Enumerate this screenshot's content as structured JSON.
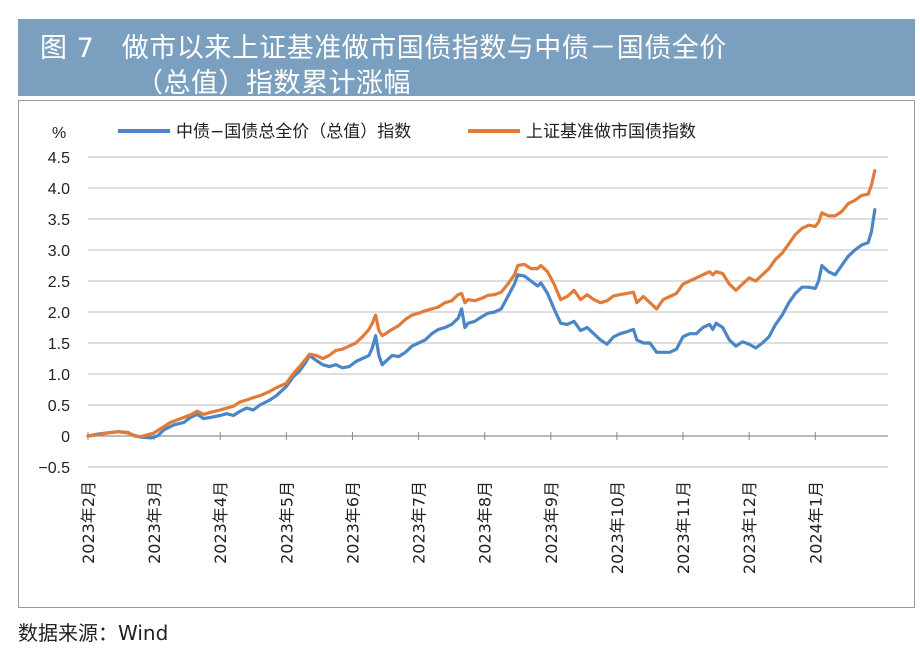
{
  "title": {
    "line1": "图 7　做市以来上证基准做市国债指数与中债－国债全价",
    "line2": "（总值）指数累计涨幅"
  },
  "source": "数据来源：Wind",
  "colors": {
    "series1": "#4a86c5",
    "series2": "#e07b39",
    "title_bg": "#7b9fbe",
    "grid": "#d4d4d4"
  },
  "chart_data": {
    "type": "line",
    "ylabel": "%",
    "ylim": [
      -0.5,
      4.5
    ],
    "yticks": [
      "4.5",
      "4.0",
      "3.5",
      "3.0",
      "2.5",
      "2.0",
      "1.5",
      "1.0",
      "0.5",
      "0",
      "−0.5"
    ],
    "categories": [
      "2023年2月",
      "2023年3月",
      "2023年4月",
      "2023年5月",
      "2023年6月",
      "2023年7月",
      "2023年8月",
      "2023年9月",
      "2023年10月",
      "2023年11月",
      "2023年12月",
      "2024年1月"
    ],
    "category_index": [
      0,
      20,
      40,
      60,
      80,
      100,
      120,
      140,
      160,
      180,
      200,
      220
    ],
    "x_max": 242,
    "legend_position": "top",
    "series": [
      {
        "name": "中债−国债总全价（总值）指数",
        "points": [
          [
            0,
            0
          ],
          [
            3,
            0.03
          ],
          [
            6,
            0.05
          ],
          [
            9,
            0.07
          ],
          [
            12,
            0.05
          ],
          [
            14,
            0.01
          ],
          [
            16,
            -0.02
          ],
          [
            19,
            -0.03
          ],
          [
            21,
            0.0
          ],
          [
            23,
            0.1
          ],
          [
            26,
            0.18
          ],
          [
            29,
            0.22
          ],
          [
            31,
            0.3
          ],
          [
            33,
            0.35
          ],
          [
            35,
            0.28
          ],
          [
            37,
            0.3
          ],
          [
            40,
            0.33
          ],
          [
            42,
            0.36
          ],
          [
            44,
            0.33
          ],
          [
            46,
            0.4
          ],
          [
            48,
            0.45
          ],
          [
            50,
            0.42
          ],
          [
            52,
            0.5
          ],
          [
            55,
            0.58
          ],
          [
            57,
            0.65
          ],
          [
            60,
            0.8
          ],
          [
            62,
            0.95
          ],
          [
            64,
            1.05
          ],
          [
            66,
            1.2
          ],
          [
            67,
            1.3
          ],
          [
            69,
            1.22
          ],
          [
            71,
            1.15
          ],
          [
            73,
            1.12
          ],
          [
            75,
            1.15
          ],
          [
            77,
            1.1
          ],
          [
            79,
            1.12
          ],
          [
            81,
            1.2
          ],
          [
            83,
            1.25
          ],
          [
            85,
            1.3
          ],
          [
            86,
            1.42
          ],
          [
            87,
            1.62
          ],
          [
            88,
            1.3
          ],
          [
            89,
            1.15
          ],
          [
            90,
            1.2
          ],
          [
            92,
            1.3
          ],
          [
            94,
            1.28
          ],
          [
            96,
            1.35
          ],
          [
            98,
            1.45
          ],
          [
            100,
            1.5
          ],
          [
            102,
            1.55
          ],
          [
            104,
            1.65
          ],
          [
            106,
            1.72
          ],
          [
            108,
            1.75
          ],
          [
            110,
            1.8
          ],
          [
            112,
            1.9
          ],
          [
            113,
            2.05
          ],
          [
            114,
            1.75
          ],
          [
            115,
            1.82
          ],
          [
            117,
            1.85
          ],
          [
            119,
            1.92
          ],
          [
            121,
            1.98
          ],
          [
            123,
            2.0
          ],
          [
            125,
            2.05
          ],
          [
            127,
            2.25
          ],
          [
            129,
            2.45
          ],
          [
            130,
            2.6
          ],
          [
            132,
            2.58
          ],
          [
            134,
            2.5
          ],
          [
            136,
            2.42
          ],
          [
            137,
            2.47
          ],
          [
            139,
            2.3
          ],
          [
            141,
            2.05
          ],
          [
            143,
            1.82
          ],
          [
            145,
            1.8
          ],
          [
            147,
            1.85
          ],
          [
            149,
            1.7
          ],
          [
            151,
            1.75
          ],
          [
            153,
            1.65
          ],
          [
            155,
            1.55
          ],
          [
            157,
            1.48
          ],
          [
            159,
            1.6
          ],
          [
            161,
            1.65
          ],
          [
            163,
            1.68
          ],
          [
            165,
            1.72
          ],
          [
            166,
            1.55
          ],
          [
            168,
            1.5
          ],
          [
            170,
            1.5
          ],
          [
            172,
            1.35
          ],
          [
            174,
            1.35
          ],
          [
            176,
            1.35
          ],
          [
            178,
            1.4
          ],
          [
            180,
            1.6
          ],
          [
            182,
            1.65
          ],
          [
            184,
            1.65
          ],
          [
            186,
            1.75
          ],
          [
            188,
            1.8
          ],
          [
            189,
            1.72
          ],
          [
            190,
            1.82
          ],
          [
            192,
            1.75
          ],
          [
            194,
            1.55
          ],
          [
            196,
            1.45
          ],
          [
            198,
            1.52
          ],
          [
            200,
            1.48
          ],
          [
            202,
            1.42
          ],
          [
            204,
            1.5
          ],
          [
            206,
            1.6
          ],
          [
            208,
            1.8
          ],
          [
            210,
            1.95
          ],
          [
            212,
            2.15
          ],
          [
            214,
            2.3
          ],
          [
            216,
            2.4
          ],
          [
            218,
            2.4
          ],
          [
            220,
            2.38
          ],
          [
            221,
            2.5
          ],
          [
            222,
            2.75
          ],
          [
            224,
            2.65
          ],
          [
            226,
            2.6
          ],
          [
            228,
            2.75
          ],
          [
            230,
            2.9
          ],
          [
            232,
            3.0
          ],
          [
            234,
            3.08
          ],
          [
            236,
            3.12
          ],
          [
            237,
            3.3
          ],
          [
            238,
            3.65
          ]
        ]
      },
      {
        "name": "上证基准做市国债指数",
        "points": [
          [
            0,
            0
          ],
          [
            3,
            0.02
          ],
          [
            6,
            0.05
          ],
          [
            9,
            0.07
          ],
          [
            12,
            0.06
          ],
          [
            14,
            0.0
          ],
          [
            16,
            -0.01
          ],
          [
            18,
            0.02
          ],
          [
            20,
            0.05
          ],
          [
            22,
            0.12
          ],
          [
            25,
            0.22
          ],
          [
            28,
            0.28
          ],
          [
            31,
            0.34
          ],
          [
            33,
            0.4
          ],
          [
            35,
            0.35
          ],
          [
            37,
            0.38
          ],
          [
            40,
            0.42
          ],
          [
            42,
            0.45
          ],
          [
            44,
            0.48
          ],
          [
            46,
            0.55
          ],
          [
            48,
            0.58
          ],
          [
            50,
            0.62
          ],
          [
            52,
            0.65
          ],
          [
            55,
            0.72
          ],
          [
            57,
            0.78
          ],
          [
            60,
            0.85
          ],
          [
            62,
            1.0
          ],
          [
            64,
            1.12
          ],
          [
            66,
            1.25
          ],
          [
            67,
            1.32
          ],
          [
            69,
            1.3
          ],
          [
            71,
            1.25
          ],
          [
            73,
            1.3
          ],
          [
            75,
            1.38
          ],
          [
            77,
            1.4
          ],
          [
            79,
            1.45
          ],
          [
            81,
            1.5
          ],
          [
            83,
            1.6
          ],
          [
            85,
            1.72
          ],
          [
            86,
            1.82
          ],
          [
            87,
            1.95
          ],
          [
            88,
            1.7
          ],
          [
            89,
            1.62
          ],
          [
            90,
            1.65
          ],
          [
            92,
            1.72
          ],
          [
            94,
            1.78
          ],
          [
            96,
            1.88
          ],
          [
            98,
            1.95
          ],
          [
            100,
            1.98
          ],
          [
            102,
            2.02
          ],
          [
            104,
            2.05
          ],
          [
            106,
            2.08
          ],
          [
            108,
            2.15
          ],
          [
            110,
            2.18
          ],
          [
            112,
            2.28
          ],
          [
            113,
            2.3
          ],
          [
            114,
            2.15
          ],
          [
            115,
            2.2
          ],
          [
            117,
            2.18
          ],
          [
            119,
            2.22
          ],
          [
            121,
            2.27
          ],
          [
            123,
            2.28
          ],
          [
            125,
            2.32
          ],
          [
            127,
            2.45
          ],
          [
            129,
            2.6
          ],
          [
            130,
            2.75
          ],
          [
            132,
            2.77
          ],
          [
            134,
            2.7
          ],
          [
            136,
            2.7
          ],
          [
            137,
            2.75
          ],
          [
            139,
            2.65
          ],
          [
            141,
            2.45
          ],
          [
            143,
            2.2
          ],
          [
            145,
            2.25
          ],
          [
            147,
            2.35
          ],
          [
            149,
            2.2
          ],
          [
            151,
            2.28
          ],
          [
            153,
            2.2
          ],
          [
            155,
            2.15
          ],
          [
            157,
            2.18
          ],
          [
            159,
            2.26
          ],
          [
            161,
            2.28
          ],
          [
            163,
            2.3
          ],
          [
            165,
            2.32
          ],
          [
            166,
            2.15
          ],
          [
            168,
            2.25
          ],
          [
            170,
            2.15
          ],
          [
            172,
            2.05
          ],
          [
            174,
            2.2
          ],
          [
            176,
            2.25
          ],
          [
            178,
            2.3
          ],
          [
            180,
            2.45
          ],
          [
            182,
            2.5
          ],
          [
            184,
            2.55
          ],
          [
            186,
            2.6
          ],
          [
            188,
            2.65
          ],
          [
            189,
            2.6
          ],
          [
            190,
            2.65
          ],
          [
            192,
            2.62
          ],
          [
            194,
            2.45
          ],
          [
            196,
            2.35
          ],
          [
            198,
            2.45
          ],
          [
            200,
            2.55
          ],
          [
            202,
            2.5
          ],
          [
            204,
            2.6
          ],
          [
            206,
            2.7
          ],
          [
            208,
            2.85
          ],
          [
            210,
            2.95
          ],
          [
            212,
            3.1
          ],
          [
            214,
            3.25
          ],
          [
            216,
            3.35
          ],
          [
            218,
            3.4
          ],
          [
            220,
            3.38
          ],
          [
            221,
            3.45
          ],
          [
            222,
            3.6
          ],
          [
            224,
            3.55
          ],
          [
            226,
            3.55
          ],
          [
            228,
            3.62
          ],
          [
            230,
            3.75
          ],
          [
            232,
            3.8
          ],
          [
            234,
            3.88
          ],
          [
            236,
            3.9
          ],
          [
            237,
            4.05
          ],
          [
            238,
            4.28
          ]
        ]
      }
    ]
  }
}
